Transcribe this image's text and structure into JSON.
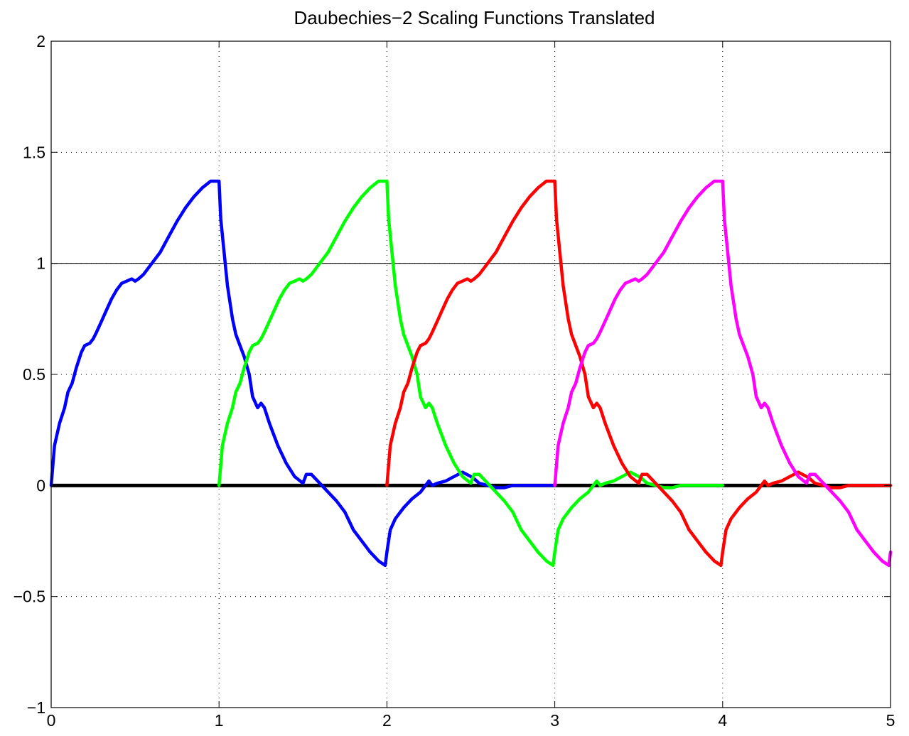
{
  "chart_data": {
    "type": "line",
    "title": "Daubechies−2 Scaling Functions Translated",
    "xlabel": "",
    "ylabel": "",
    "xlim": [
      0,
      5
    ],
    "ylim": [
      -1,
      2
    ],
    "grid": true,
    "x_ticks": [
      0,
      1,
      2,
      3,
      4,
      5
    ],
    "x_tick_labels": [
      "0",
      "1",
      "2",
      "3",
      "4",
      "5"
    ],
    "y_ticks": [
      -1,
      -0.5,
      0,
      0.5,
      1,
      1.5,
      2
    ],
    "y_tick_labels": [
      "−1",
      "−0.5",
      "0",
      "0.5",
      "1",
      "1.5",
      "2"
    ],
    "reference_lines": [
      {
        "y": 1,
        "color": "#000000"
      },
      {
        "y": 0,
        "color": "#000000"
      }
    ],
    "base_function": {
      "x": [
        0,
        0.02,
        0.05,
        0.08,
        0.1,
        0.125,
        0.15,
        0.18,
        0.2,
        0.23,
        0.25,
        0.27,
        0.3,
        0.33,
        0.36,
        0.39,
        0.42,
        0.45,
        0.48,
        0.5,
        0.52,
        0.55,
        0.6,
        0.65,
        0.7,
        0.75,
        0.8,
        0.85,
        0.9,
        0.95,
        1.0,
        1.01,
        1.03,
        1.05,
        1.08,
        1.1,
        1.125,
        1.15,
        1.18,
        1.2,
        1.23,
        1.25,
        1.27,
        1.3,
        1.35,
        1.4,
        1.45,
        1.5,
        1.52,
        1.55,
        1.6,
        1.65,
        1.7,
        1.75,
        1.8,
        1.85,
        1.9,
        1.95,
        1.99,
        2.0,
        2.02,
        2.05,
        2.1,
        2.15,
        2.2,
        2.25,
        2.27,
        2.3,
        2.35,
        2.4,
        2.45,
        2.5,
        2.52,
        2.55,
        2.6,
        2.65,
        2.7,
        2.75,
        2.8,
        2.85,
        2.9,
        2.95,
        3.0
      ],
      "y": [
        0,
        0.18,
        0.28,
        0.35,
        0.42,
        0.46,
        0.53,
        0.6,
        0.63,
        0.64,
        0.66,
        0.69,
        0.74,
        0.79,
        0.84,
        0.88,
        0.91,
        0.92,
        0.93,
        0.92,
        0.93,
        0.95,
        1.0,
        1.05,
        1.12,
        1.19,
        1.25,
        1.3,
        1.34,
        1.37,
        1.37,
        1.2,
        1.05,
        0.9,
        0.75,
        0.68,
        0.63,
        0.58,
        0.5,
        0.4,
        0.35,
        0.37,
        0.35,
        0.28,
        0.18,
        0.1,
        0.04,
        0.01,
        0.05,
        0.05,
        0.01,
        -0.03,
        -0.07,
        -0.12,
        -0.2,
        -0.25,
        -0.3,
        -0.34,
        -0.36,
        -0.3,
        -0.2,
        -0.15,
        -0.1,
        -0.06,
        -0.03,
        0.02,
        0.0,
        0.01,
        0.02,
        0.04,
        0.06,
        0.04,
        0.03,
        0.01,
        0.0,
        -0.01,
        -0.01,
        0.0,
        0.0,
        0.0,
        0.0,
        0.0,
        0.0
      ]
    },
    "series": [
      {
        "shift": 0,
        "color": "#0000ff"
      },
      {
        "shift": 1,
        "color": "#00ff00"
      },
      {
        "shift": 2,
        "color": "#ff0000"
      },
      {
        "shift": 3,
        "color": "#ff00ff"
      }
    ]
  }
}
